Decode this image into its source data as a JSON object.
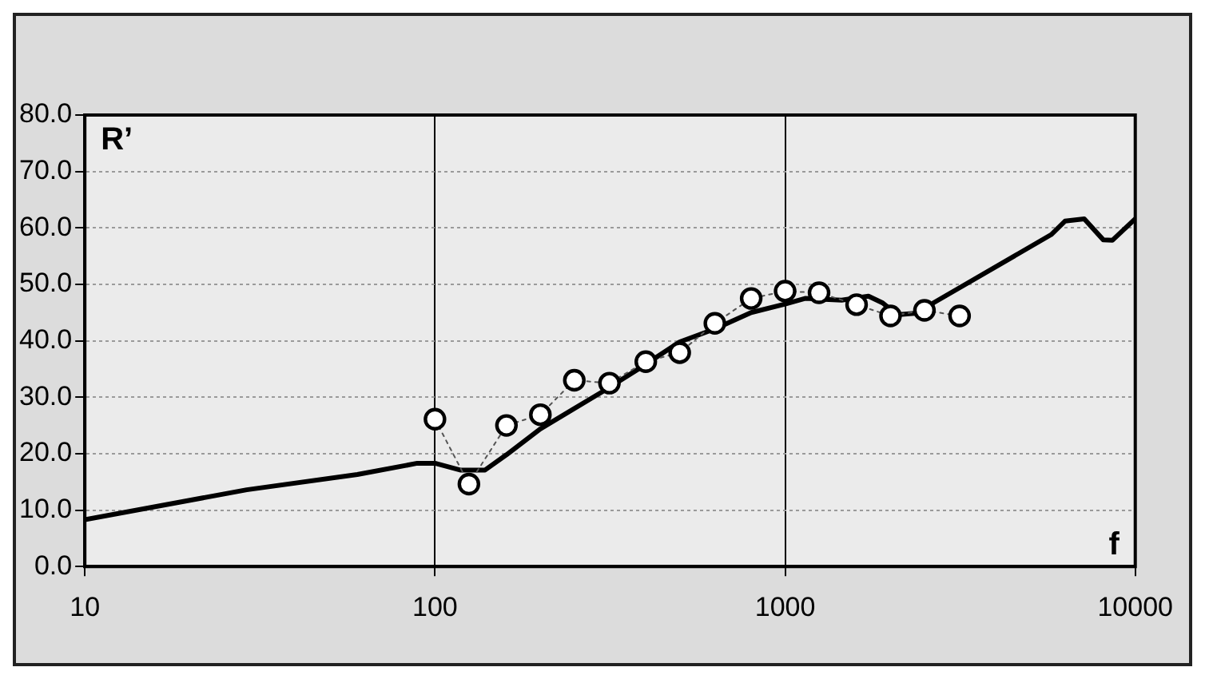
{
  "chart_data": {
    "type": "line",
    "xlabel": "f",
    "ylabel": "R’",
    "log": "x",
    "grid": true,
    "legend": false,
    "xlim": [
      10,
      10000
    ],
    "xticks": [
      10,
      100,
      1000,
      10000
    ],
    "ylim": [
      0,
      80
    ],
    "yticks": [
      {
        "value": 0,
        "label": "0.0"
      },
      {
        "value": 10,
        "label": "10.0"
      },
      {
        "value": 20,
        "label": "20.0"
      },
      {
        "value": 30,
        "label": "30.0"
      },
      {
        "value": 40,
        "label": "40.0"
      },
      {
        "value": 50,
        "label": "50.0"
      },
      {
        "value": 60,
        "label": "60.0"
      },
      {
        "value": 70,
        "label": "70.0"
      },
      {
        "value": 80,
        "label": "80.0"
      }
    ],
    "series": [
      {
        "type": "line",
        "color": "#000000",
        "marker": "none",
        "line_style": "solid",
        "x": [
          10,
          29,
          60,
          89,
          100,
          118,
          139,
          160,
          200,
          303,
          390,
          500,
          630,
          800,
          1000,
          1140,
          1450,
          1730,
          1900,
          2090,
          2500,
          2650,
          5750,
          6300,
          7150,
          8100,
          8600,
          10000
        ],
        "values": [
          8.3,
          13.6,
          16.3,
          18.3,
          18.3,
          17.1,
          17.1,
          19.8,
          24.4,
          31.1,
          35.4,
          39.8,
          42.1,
          45,
          46.5,
          47.5,
          47.2,
          47.9,
          46.7,
          44.6,
          45,
          46.7,
          58.8,
          61.2,
          61.6,
          57.9,
          57.8,
          61.6
        ]
      },
      {
        "type": "line",
        "color": "#000000",
        "marker": "circle",
        "line_style": "dotted",
        "x": [
          100,
          125,
          160,
          200,
          250,
          315,
          400,
          500,
          630,
          800,
          1000,
          1250,
          1600,
          2000,
          2500,
          3150
        ],
        "values": [
          26.1,
          14.6,
          25,
          26.9,
          33,
          32.5,
          36.3,
          37.9,
          43.1,
          47.5,
          48.8,
          48.5,
          46.4,
          44.4,
          45.4,
          44.4
        ]
      }
    ]
  }
}
